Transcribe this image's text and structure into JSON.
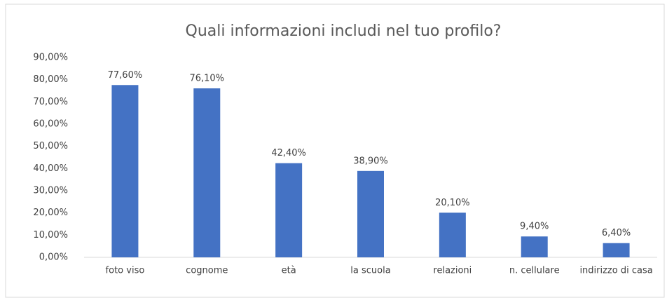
{
  "chart_data": {
    "type": "bar",
    "title": "Quali informazioni includi nel tuo profilo?",
    "categories": [
      "foto viso",
      "cognome",
      "età",
      "la scuola",
      "relazioni",
      "n. cellulare",
      "indirizzo di casa"
    ],
    "values": [
      77.6,
      76.1,
      42.4,
      38.9,
      20.1,
      9.4,
      6.4
    ],
    "value_labels": [
      "77,60%",
      "76,10%",
      "42,40%",
      "38,90%",
      "20,10%",
      "9,40%",
      "6,40%"
    ],
    "color": "#4472c4",
    "ylim": [
      0,
      90
    ],
    "yticks": [
      {
        "value": 0,
        "label": "0,00%"
      },
      {
        "value": 10,
        "label": "10,00%"
      },
      {
        "value": 20,
        "label": "20,00%"
      },
      {
        "value": 30,
        "label": "30,00%"
      },
      {
        "value": 40,
        "label": "40,00%"
      },
      {
        "value": 50,
        "label": "50,00%"
      },
      {
        "value": 60,
        "label": "60,00%"
      },
      {
        "value": 70,
        "label": "70,00%"
      },
      {
        "value": 80,
        "label": "80,00%"
      },
      {
        "value": 90,
        "label": "90,00%"
      }
    ],
    "grid": false
  }
}
